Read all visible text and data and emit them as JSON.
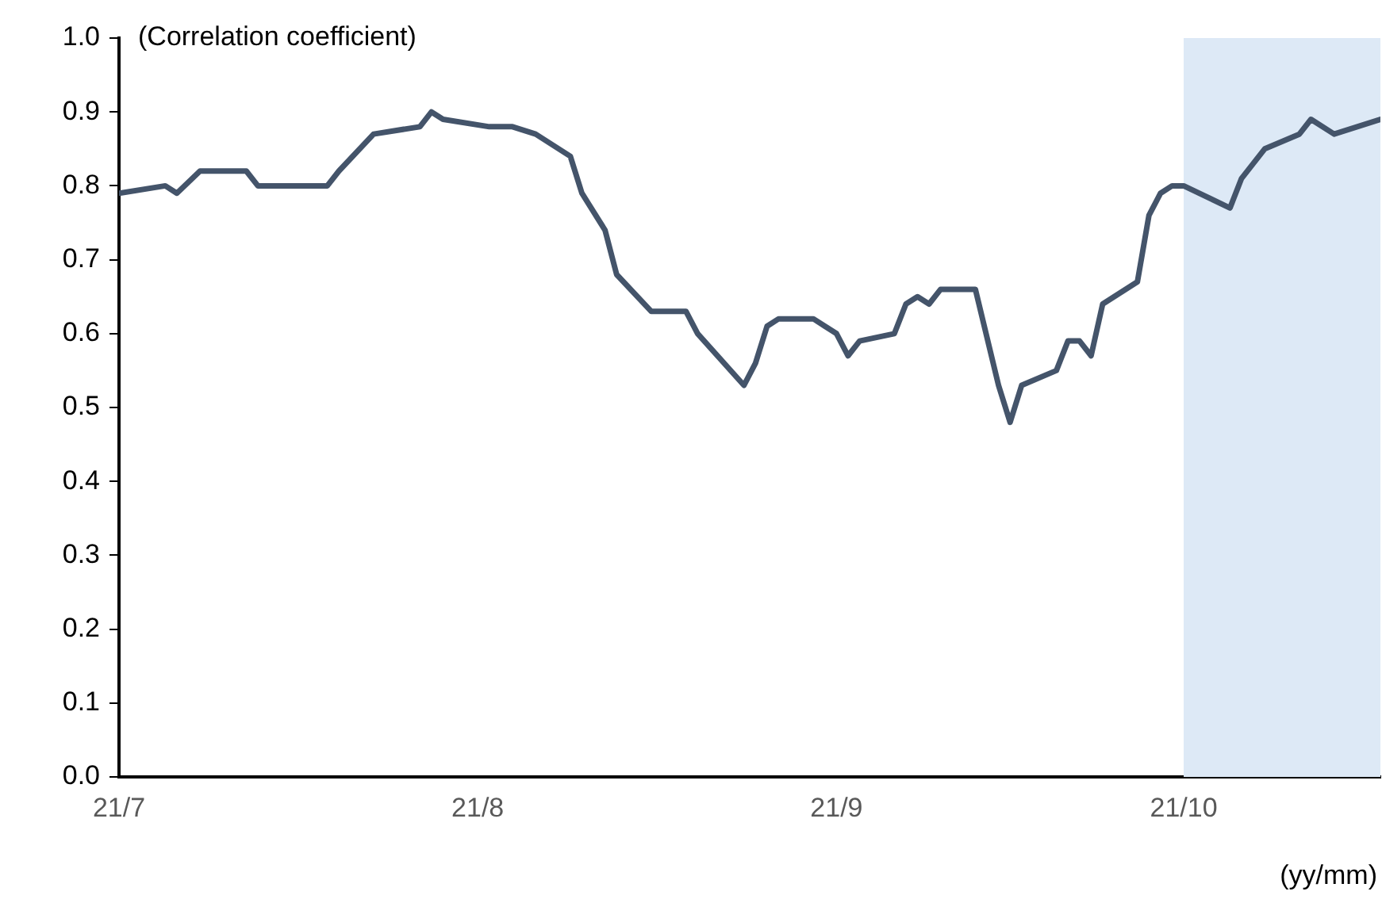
{
  "chart_data": {
    "type": "line",
    "ylabel": "(Correlation coefficient)",
    "xlabel": "(yy/mm)",
    "x": [
      "--07-01",
      "--07-05",
      "--07-06",
      "--07-08",
      "--07-12",
      "--07-13",
      "--07-19",
      "--07-20",
      "--07-23",
      "--07-27",
      "--07-28",
      "--07-29",
      "--08-02",
      "--08-04",
      "--08-06",
      "--08-09",
      "--08-10",
      "--08-12",
      "--08-13",
      "--08-16",
      "--08-17",
      "--08-19",
      "--08-20",
      "--08-24",
      "--08-25",
      "--08-26",
      "--08-27",
      "--08-30",
      "--08-31",
      "--09-01",
      "--09-02",
      "--09-03",
      "--09-06",
      "--09-07",
      "--09-08",
      "--09-09",
      "--09-10",
      "--09-13",
      "--09-15",
      "--09-16",
      "--09-17",
      "--09-20",
      "--09-21",
      "--09-22",
      "--09-23",
      "--09-24",
      "--09-27",
      "--09-28",
      "--09-29",
      "--09-30",
      "--10-01",
      "--10-05",
      "--10-06",
      "--10-08",
      "--10-11",
      "--10-12",
      "--10-14",
      "--10-18"
    ],
    "series": [
      {
        "color": "#44546a",
        "values": [
          0.79,
          0.8,
          0.79,
          0.82,
          0.82,
          0.8,
          0.8,
          0.82,
          0.87,
          0.88,
          0.9,
          0.89,
          0.88,
          0.88,
          0.87,
          0.84,
          0.79,
          0.74,
          0.68,
          0.63,
          0.63,
          0.63,
          0.6,
          0.53,
          0.56,
          0.61,
          0.62,
          0.62,
          0.61,
          0.6,
          0.57,
          0.59,
          0.6,
          0.64,
          0.65,
          0.64,
          0.66,
          0.66,
          0.53,
          0.48,
          0.53,
          0.55,
          0.59,
          0.59,
          0.57,
          0.64,
          0.67,
          0.76,
          0.79,
          0.8,
          0.8,
          0.77,
          0.81,
          0.85,
          0.87,
          0.89,
          0.87,
          0.89
        ]
      }
    ],
    "xlim": [
      "--07-01",
      "--10-18"
    ],
    "xticks": [
      {
        "value": "--07-01",
        "label": "21/7"
      },
      {
        "value": "--08-01",
        "label": "21/8"
      },
      {
        "value": "--09-01",
        "label": "21/9"
      },
      {
        "value": "--10-01",
        "label": "21/10"
      }
    ],
    "ylim": [
      0,
      1
    ],
    "yticks": [
      {
        "value": 0,
        "label": "0.0"
      },
      {
        "value": 0.1,
        "label": "0.1"
      },
      {
        "value": 0.2,
        "label": "0.2"
      },
      {
        "value": 0.3,
        "label": "0.3"
      },
      {
        "value": 0.4,
        "label": "0.4"
      },
      {
        "value": 0.5,
        "label": "0.5"
      },
      {
        "value": 0.6,
        "label": "0.6"
      },
      {
        "value": 0.7,
        "label": "0.7"
      },
      {
        "value": 0.8,
        "label": "0.8"
      },
      {
        "value": 0.9,
        "label": "0.9"
      },
      {
        "value": 1,
        "label": "1.0"
      }
    ],
    "bands": [
      {
        "axis": "x",
        "from": "--10-01",
        "to": "--10-18",
        "color": "#dde9f6"
      }
    ],
    "grid": false,
    "legend": false,
    "marker": "none",
    "line_style": "solid"
  }
}
